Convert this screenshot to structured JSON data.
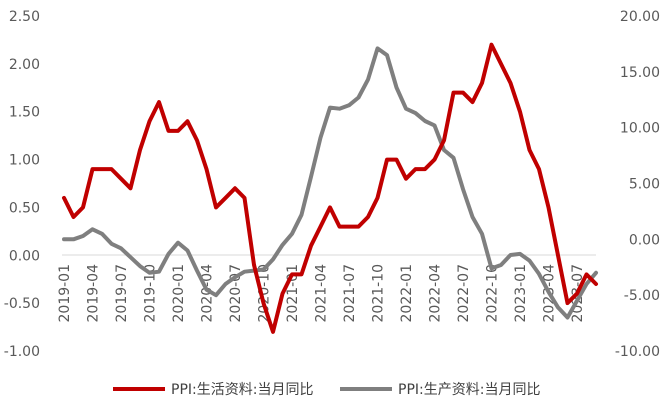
{
  "chart_data": {
    "type": "line",
    "title": "",
    "xlabel": "",
    "ylabel_left": "",
    "ylabel_right": "",
    "grid": false,
    "legend_position": "bottom",
    "x": [
      "2019-01",
      "2019-02",
      "2019-03",
      "2019-04",
      "2019-05",
      "2019-06",
      "2019-07",
      "2019-08",
      "2019-09",
      "2019-10",
      "2019-11",
      "2019-12",
      "2020-01",
      "2020-02",
      "2020-03",
      "2020-04",
      "2020-05",
      "2020-06",
      "2020-07",
      "2020-08",
      "2020-09",
      "2020-10",
      "2020-11",
      "2020-12",
      "2021-01",
      "2021-02",
      "2021-03",
      "2021-04",
      "2021-05",
      "2021-06",
      "2021-07",
      "2021-08",
      "2021-09",
      "2021-10",
      "2021-11",
      "2021-12",
      "2022-01",
      "2022-02",
      "2022-03",
      "2022-04",
      "2022-05",
      "2022-06",
      "2022-07",
      "2022-08",
      "2022-09",
      "2022-10",
      "2022-11",
      "2022-12",
      "2023-01",
      "2023-02",
      "2023-03",
      "2023-04",
      "2023-05",
      "2023-06",
      "2023-07",
      "2023-08",
      "2023-09"
    ],
    "x_tick_labels": [
      "2019-01",
      "2019-04",
      "2019-07",
      "2019-10",
      "2020-01",
      "2020-04",
      "2020-07",
      "2020-10",
      "2021-01",
      "2021-04",
      "2021-07",
      "2021-10",
      "2022-01",
      "2022-04",
      "2022-07",
      "2022-10",
      "2023-01",
      "2023-04",
      "2023-07"
    ],
    "y_left": {
      "ticks": [
        "2.50",
        "2.00",
        "1.50",
        "1.00",
        "0.50",
        "0.00",
        "-0.50",
        "-1.00"
      ],
      "ylim": [
        -1.0,
        2.5
      ]
    },
    "y_right": {
      "ticks": [
        "20.00",
        "15.00",
        "10.00",
        "5.00",
        "0.00",
        "-5.00",
        "-10.00"
      ],
      "ylim": [
        -10.0,
        20.0
      ]
    },
    "series": [
      {
        "name": "PPI:生活资料:当月同比",
        "axis": "left",
        "color": "#C00000",
        "values": [
          0.6,
          0.4,
          0.5,
          0.9,
          0.9,
          0.9,
          0.8,
          0.7,
          1.1,
          1.4,
          1.6,
          1.3,
          1.3,
          1.4,
          1.2,
          0.9,
          0.5,
          0.6,
          0.7,
          0.6,
          -0.1,
          -0.5,
          -0.8,
          -0.4,
          -0.2,
          -0.2,
          0.1,
          0.3,
          0.5,
          0.3,
          0.3,
          0.3,
          0.4,
          0.6,
          1.0,
          1.0,
          0.8,
          0.9,
          0.9,
          1.0,
          1.2,
          1.7,
          1.7,
          1.6,
          1.8,
          2.2,
          2.0,
          1.8,
          1.5,
          1.1,
          0.9,
          0.5,
          0.0,
          -0.5,
          -0.4,
          -0.2,
          -0.3
        ]
      },
      {
        "name": "PPI:生产资料:当月同比",
        "axis": "right",
        "color": "#7F7F7F",
        "values": [
          0.0,
          0.0,
          0.3,
          0.9,
          0.5,
          -0.4,
          -0.8,
          -1.6,
          -2.4,
          -3.0,
          -2.9,
          -1.3,
          -0.3,
          -1.0,
          -2.8,
          -4.5,
          -5.0,
          -4.0,
          -3.4,
          -2.9,
          -2.8,
          -2.7,
          -1.8,
          -0.5,
          0.5,
          2.2,
          5.6,
          9.1,
          11.8,
          11.7,
          12.0,
          12.7,
          14.3,
          17.1,
          16.5,
          13.6,
          11.7,
          11.3,
          10.6,
          10.2,
          8.0,
          7.3,
          4.5,
          2.0,
          0.5,
          -2.6,
          -2.3,
          -1.4,
          -1.3,
          -1.9,
          -3.1,
          -4.7,
          -6.1,
          -7.0,
          -5.5,
          -4.0,
          -3.0
        ]
      }
    ]
  },
  "legend": {
    "items": [
      {
        "label": "PPI:生活资料:当月同比",
        "color": "#C00000"
      },
      {
        "label": "PPI:生产资料:当月同比",
        "color": "#7F7F7F"
      }
    ]
  }
}
